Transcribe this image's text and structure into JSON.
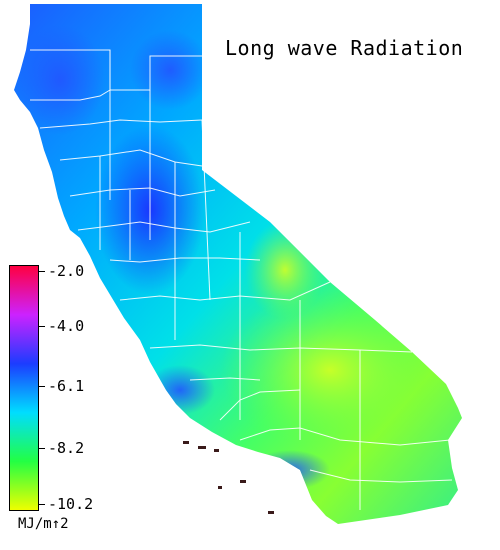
{
  "title": "Long wave Radiation",
  "legend": {
    "unit": "MJ/m↑2",
    "ticks": [
      "-2.0",
      "-4.0",
      "-6.1",
      "-8.2",
      "-10.2"
    ],
    "colors": [
      "#ff0040",
      "#cc22ff",
      "#1c3cff",
      "#00ddff",
      "#22ff44",
      "#eeff00"
    ]
  },
  "map": {
    "region": "California",
    "border_color": "#ffffff",
    "colors": {
      "ocean": "#ffffff",
      "low": "#1c3cff",
      "mid": "#00c8ff",
      "high": "#33ff44",
      "peak": "#ccff22"
    }
  }
}
